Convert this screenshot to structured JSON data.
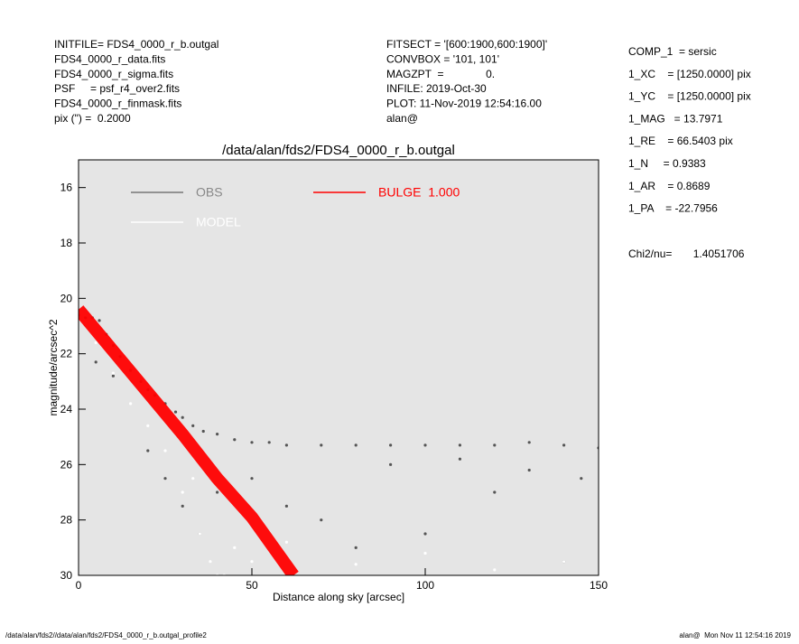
{
  "header": {
    "left": [
      "INITFILE= FDS4_0000_r_b.outgal",
      "FDS4_0000_r_data.fits",
      "FDS4_0000_r_sigma.fits",
      "PSF     = psf_r4_over2.fits",
      "FDS4_0000_r_finmask.fits",
      "pix (\") =  0.2000"
    ],
    "middle": [
      "FITSECT = '[600:1900,600:1900]'",
      "CONVBOX = '101, 101'",
      "MAGZPT  =              0.",
      "INFILE: 2019-Oct-30",
      "PLOT: 11-Nov-2019 12:54:16.00",
      "alan@"
    ],
    "right": [
      "COMP_1  = sersic",
      "1_XC    = [1250.0000] pix",
      "1_YC    = [1250.0000] pix",
      "1_MAG   = 13.7971",
      "1_RE    = 66.5403 pix",
      "1_N     = 0.9383",
      "1_AR    = 0.8689",
      "1_PA    = -22.7956"
    ],
    "chi2": "Chi2/nu=       1.4051706"
  },
  "footer": {
    "left": "/data/alan/fds2//data/alan/fds2/FDS4_0000_r_b.outgal_profile2",
    "right": "alan@  Mon Nov 11 12:54:16 2019"
  },
  "chart_data": {
    "type": "scatter",
    "title": "/data/alan/fds2/FDS4_0000_r_b.outgal",
    "xlabel": "Distance along sky [arcsec]",
    "ylabel": "magnitude/arcsec^2",
    "xlim": [
      0,
      150
    ],
    "ylim": [
      30,
      15
    ],
    "xticks": [
      0,
      50,
      100,
      150
    ],
    "yticks": [
      16,
      18,
      20,
      22,
      24,
      26,
      28,
      30
    ],
    "background": "#e5e5e5",
    "series": [
      {
        "name": "OBS",
        "color": "#555555",
        "mode": "points",
        "x": [
          0,
          2,
          4,
          6,
          8,
          10,
          12,
          15,
          18,
          20,
          22,
          25,
          28,
          30,
          33,
          36,
          40,
          45,
          50,
          55,
          60,
          70,
          80,
          90,
          100,
          110,
          120,
          130,
          140,
          150,
          5,
          10,
          20,
          25,
          30,
          35,
          40,
          50,
          60,
          70,
          80,
          100,
          120,
          140,
          145,
          90,
          110,
          130
        ],
        "values": [
          20.6,
          20.7,
          20.7,
          20.8,
          21.3,
          21.7,
          22.1,
          22.6,
          23.0,
          23.3,
          23.5,
          23.8,
          24.1,
          24.3,
          24.6,
          24.8,
          24.9,
          25.1,
          25.2,
          25.2,
          25.3,
          25.3,
          25.3,
          25.3,
          25.3,
          25.3,
          25.3,
          25.2,
          25.3,
          25.4,
          22.3,
          22.8,
          25.5,
          26.5,
          27.5,
          28.5,
          27,
          26.5,
          27.5,
          28,
          29,
          28.5,
          27,
          29.5,
          26.5,
          26,
          25.8,
          26.2
        ]
      },
      {
        "name": "MODEL",
        "color": "#ffffff",
        "mode": "points",
        "x": [
          0,
          5,
          10,
          15,
          20,
          25,
          30,
          35,
          38,
          40,
          33,
          42,
          45,
          50,
          60,
          80,
          100,
          120,
          140
        ],
        "values": [
          20.5,
          21.6,
          22.7,
          23.8,
          24.6,
          25.5,
          27,
          28.5,
          29.5,
          30,
          26.5,
          30,
          29,
          29.5,
          28.8,
          29.6,
          29.2,
          29.8,
          29.5
        ]
      },
      {
        "name": "BULGE  1.000",
        "color": "#ff0000",
        "mode": "band",
        "x": [
          0,
          10,
          20,
          30,
          40,
          50,
          62
        ],
        "values": [
          20.4,
          21.9,
          23.4,
          24.9,
          26.5,
          27.9,
          30
        ]
      }
    ]
  }
}
